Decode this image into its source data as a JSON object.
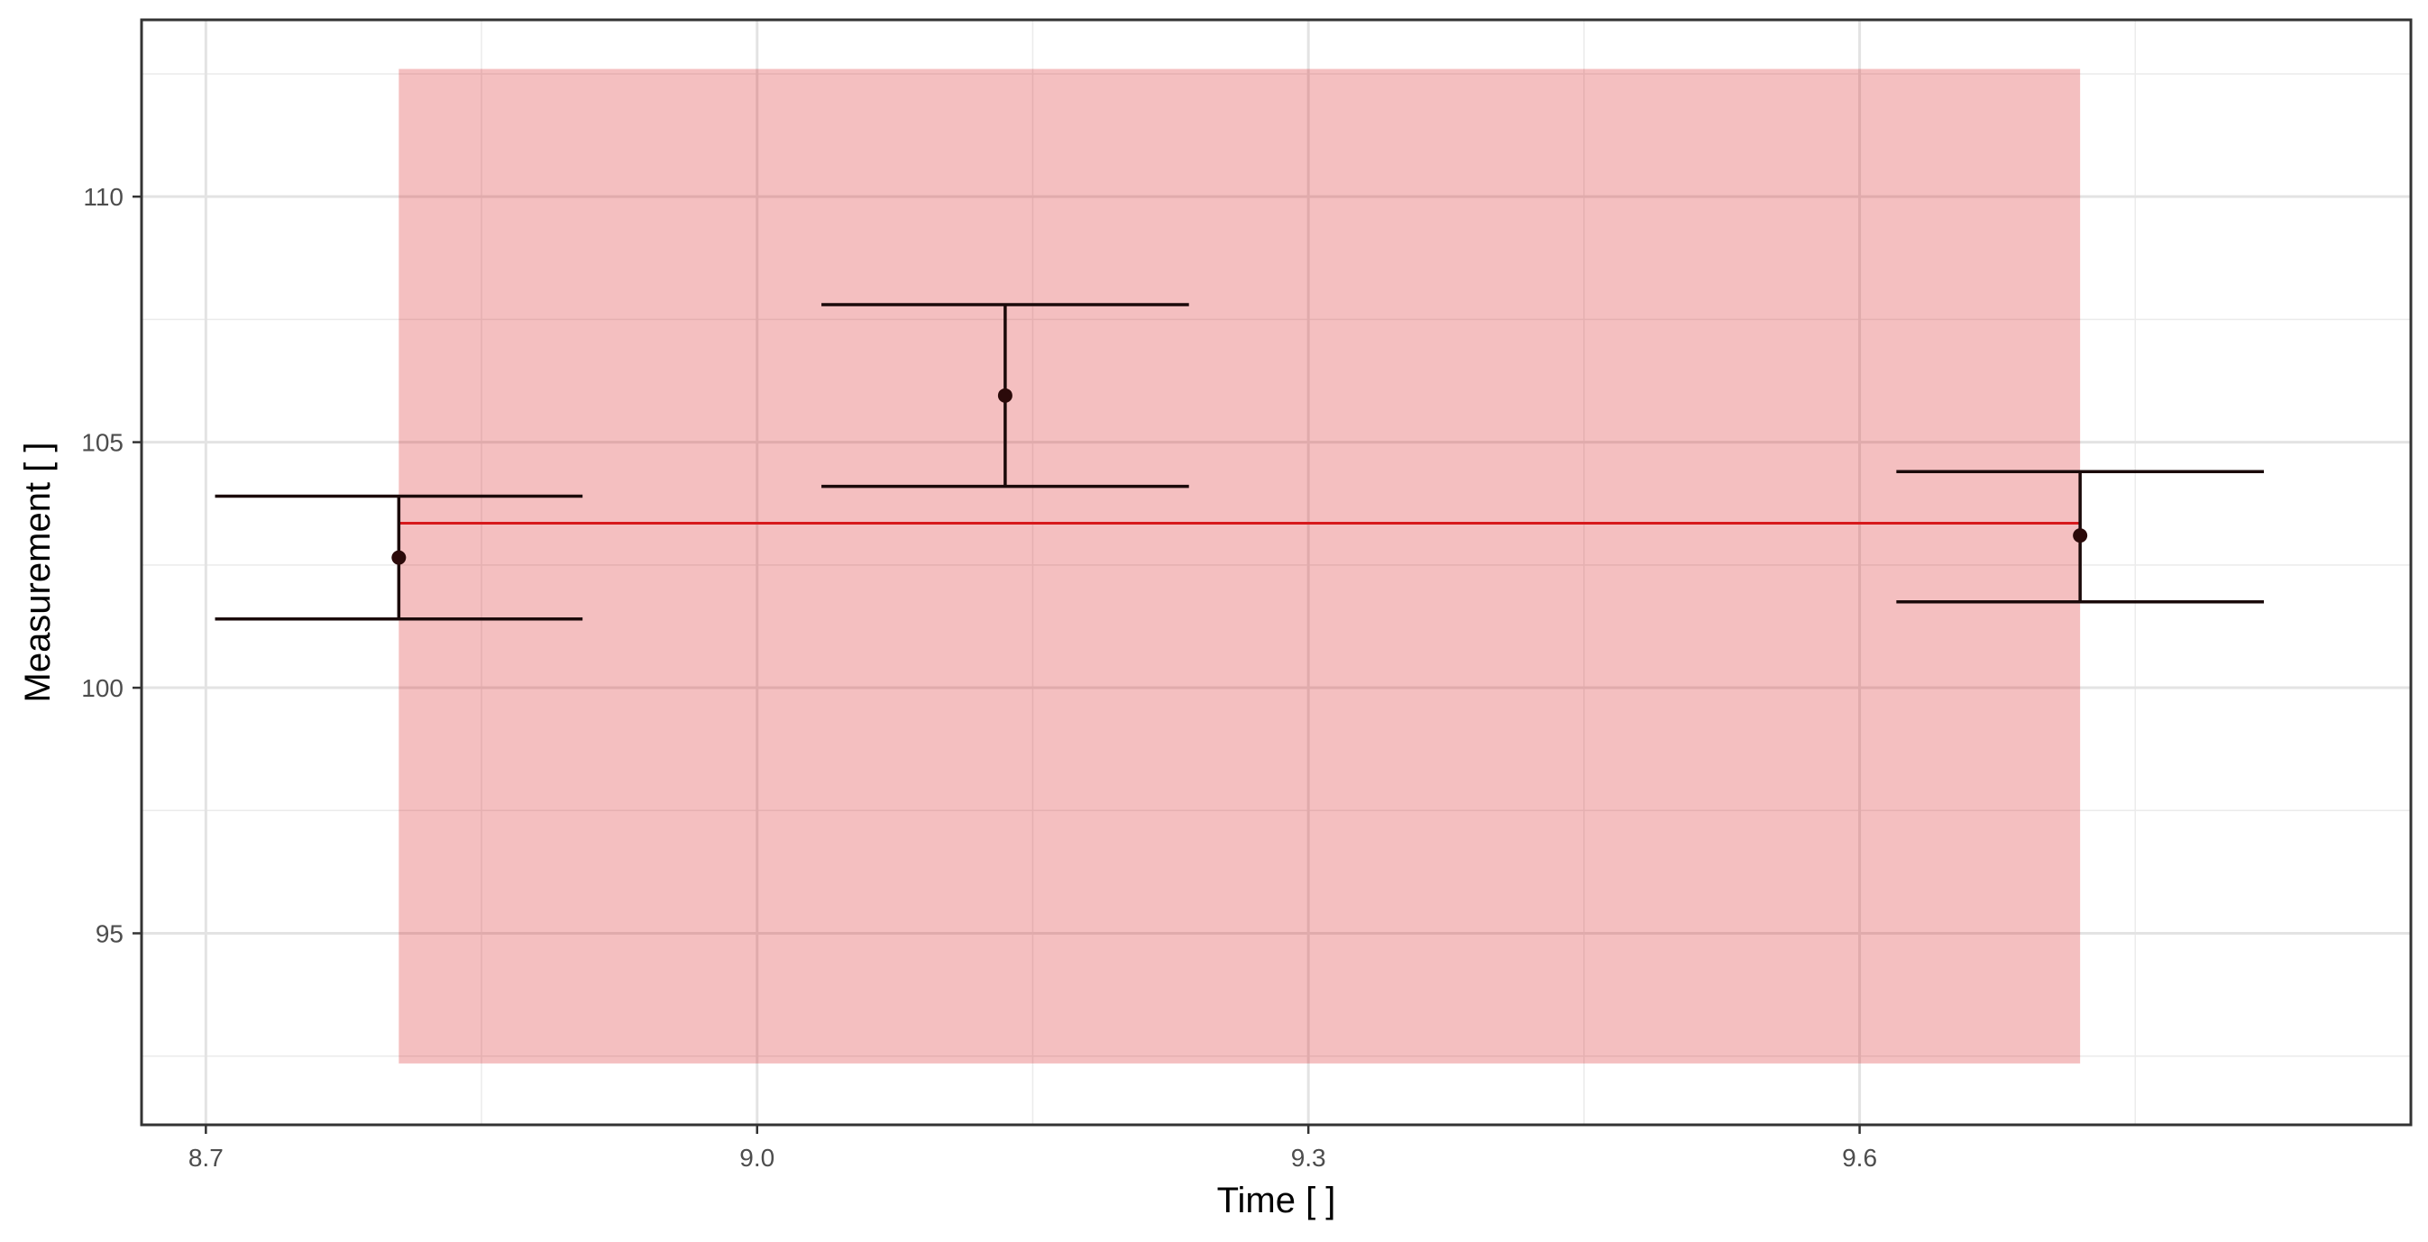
{
  "chart_data": {
    "type": "scatter",
    "xlabel": "Time [ ]",
    "ylabel": "Measurement [ ]",
    "xlim": [
      8.665,
      9.9
    ],
    "ylim": [
      91.1,
      113.6
    ],
    "x_ticks": [
      8.7,
      9.0,
      9.3,
      9.6
    ],
    "x_tick_labels": [
      "8.7",
      "9.0",
      "9.3",
      "9.6"
    ],
    "y_ticks": [
      95,
      100,
      105,
      110
    ],
    "y_tick_labels": [
      "95",
      "100",
      "105",
      "110"
    ],
    "grid": true,
    "points": [
      {
        "x": 8.805,
        "y": 102.65,
        "y_low": 101.4,
        "y_high": 103.9,
        "x_low": 8.705,
        "x_high": 8.905
      },
      {
        "x": 9.135,
        "y": 105.95,
        "y_low": 104.1,
        "y_high": 107.8,
        "x_low": 9.035,
        "x_high": 9.235
      },
      {
        "x": 9.72,
        "y": 103.1,
        "y_low": 101.75,
        "y_high": 104.4,
        "x_low": 9.62,
        "x_high": 9.82
      }
    ],
    "fit_line": {
      "x_start": 8.805,
      "x_end": 9.72,
      "y": 103.35,
      "color": "#d7191c"
    },
    "band": {
      "x_start": 8.805,
      "x_end": 9.72,
      "y_low": 92.35,
      "y_high": 112.6,
      "color": "#d7191c"
    },
    "colors": {
      "points": "#2b0a0a",
      "errorbars": "#1a0a0a"
    }
  }
}
